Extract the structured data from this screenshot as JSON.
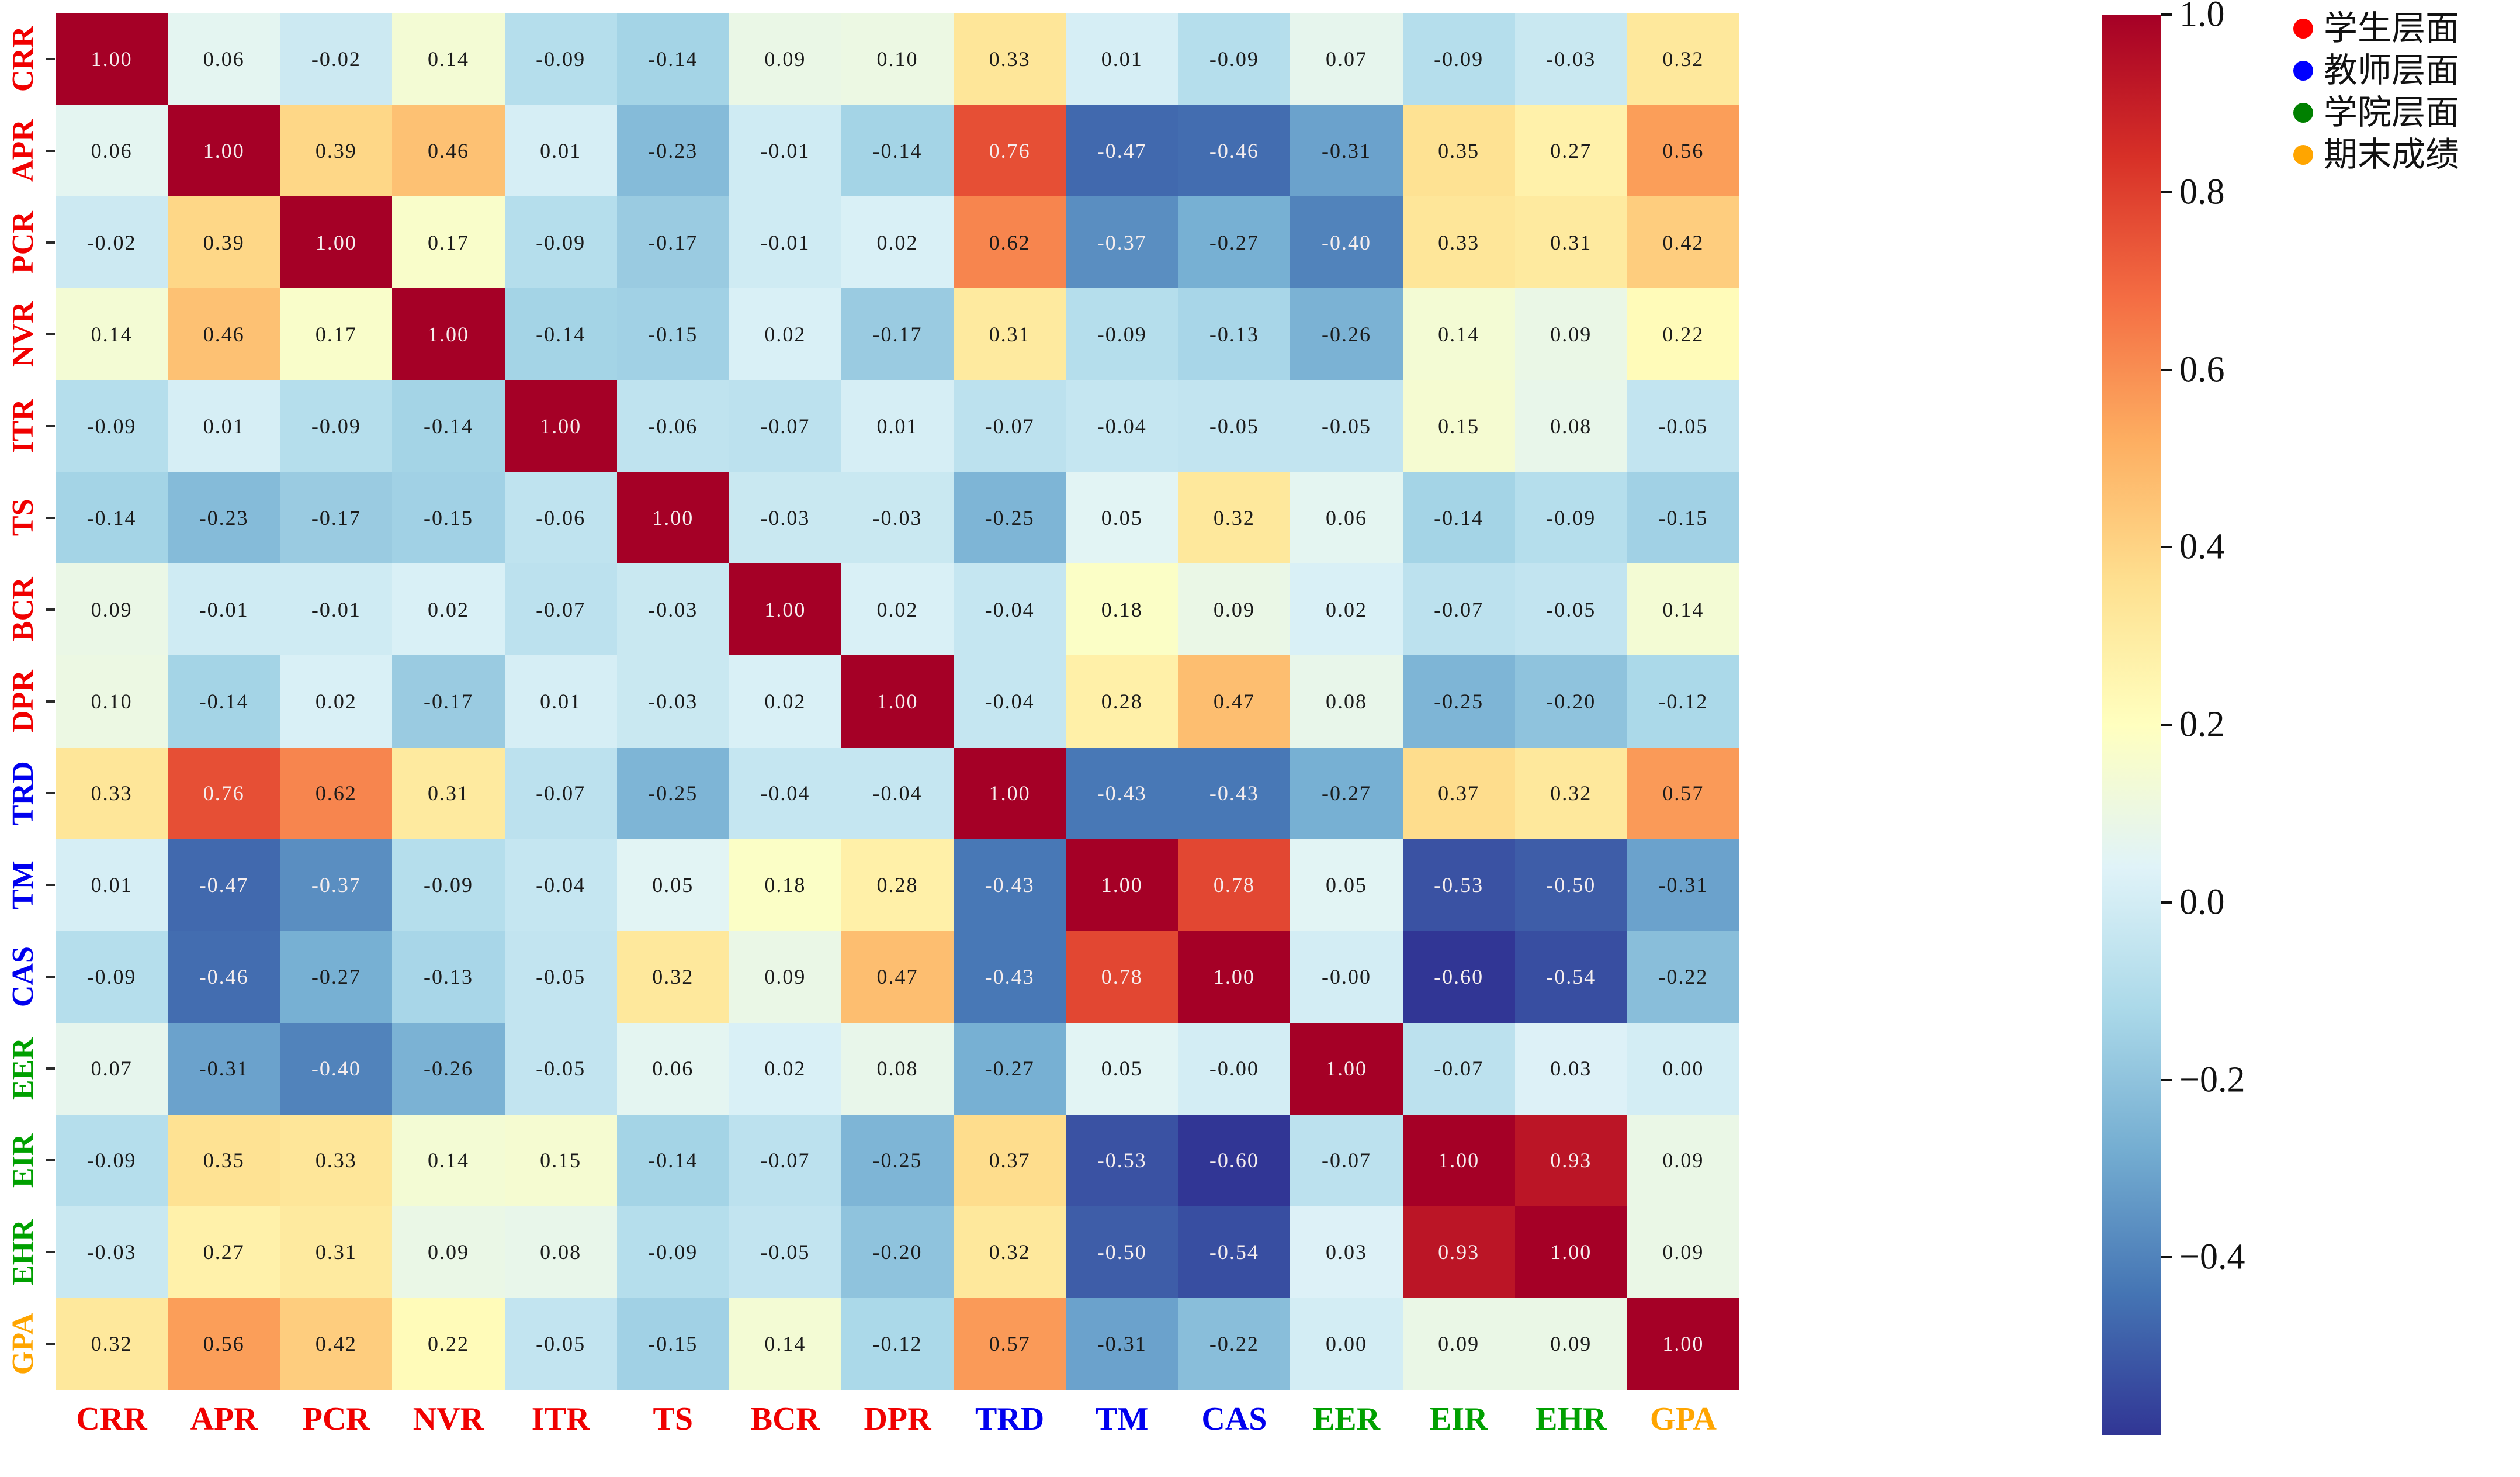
{
  "figure": {
    "background": "#ffffff",
    "description_type": "correlation-heatmap"
  },
  "chart_data": {
    "type": "heatmap",
    "labels": [
      "CRR",
      "APR",
      "PCR",
      "NVR",
      "ITR",
      "TS",
      "BCR",
      "DPR",
      "TRD",
      "TM",
      "CAS",
      "EER",
      "EIR",
      "EHR",
      "GPA"
    ],
    "label_groups": [
      "student",
      "student",
      "student",
      "student",
      "student",
      "student",
      "student",
      "student",
      "teacher",
      "teacher",
      "teacher",
      "college",
      "college",
      "college",
      "gpa"
    ],
    "group_colors": {
      "student": "#f00000",
      "teacher": "#0000ee",
      "college": "#00a000",
      "gpa": "#ffa500"
    },
    "matrix": [
      [
        1.0,
        0.06,
        -0.02,
        0.14,
        -0.09,
        -0.14,
        0.09,
        0.1,
        0.33,
        0.01,
        -0.09,
        0.07,
        -0.09,
        -0.03,
        0.32
      ],
      [
        0.06,
        1.0,
        0.39,
        0.46,
        0.01,
        -0.23,
        -0.01,
        -0.14,
        0.76,
        -0.47,
        -0.46,
        -0.31,
        0.35,
        0.27,
        0.56
      ],
      [
        -0.02,
        0.39,
        1.0,
        0.17,
        -0.09,
        -0.17,
        -0.01,
        0.02,
        0.62,
        -0.37,
        -0.27,
        -0.4,
        0.33,
        0.31,
        0.42
      ],
      [
        0.14,
        0.46,
        0.17,
        1.0,
        -0.14,
        -0.15,
        0.02,
        -0.17,
        0.31,
        -0.09,
        -0.13,
        -0.26,
        0.14,
        0.09,
        0.22
      ],
      [
        -0.09,
        0.01,
        -0.09,
        -0.14,
        1.0,
        -0.06,
        -0.07,
        0.01,
        -0.07,
        -0.04,
        -0.05,
        -0.05,
        0.15,
        0.08,
        -0.05
      ],
      [
        -0.14,
        -0.23,
        -0.17,
        -0.15,
        -0.06,
        1.0,
        -0.03,
        -0.03,
        -0.25,
        0.05,
        0.32,
        0.06,
        -0.14,
        -0.09,
        -0.15
      ],
      [
        0.09,
        -0.01,
        -0.01,
        0.02,
        -0.07,
        -0.03,
        1.0,
        0.02,
        -0.04,
        0.18,
        0.09,
        0.02,
        -0.07,
        -0.05,
        0.14
      ],
      [
        0.1,
        -0.14,
        0.02,
        -0.17,
        0.01,
        -0.03,
        0.02,
        1.0,
        -0.04,
        0.28,
        0.47,
        0.08,
        -0.25,
        -0.2,
        -0.12
      ],
      [
        0.33,
        0.76,
        0.62,
        0.31,
        -0.07,
        -0.25,
        -0.04,
        -0.04,
        1.0,
        -0.43,
        -0.43,
        -0.27,
        0.37,
        0.32,
        0.57
      ],
      [
        0.01,
        -0.47,
        -0.37,
        -0.09,
        -0.04,
        0.05,
        0.18,
        0.28,
        -0.43,
        1.0,
        0.78,
        0.05,
        -0.53,
        -0.5,
        -0.31
      ],
      [
        -0.09,
        -0.46,
        -0.27,
        -0.13,
        -0.05,
        0.32,
        0.09,
        0.47,
        -0.43,
        0.78,
        1.0,
        -0.0,
        -0.6,
        -0.54,
        -0.22
      ],
      [
        0.07,
        -0.31,
        -0.4,
        -0.26,
        -0.05,
        0.06,
        0.02,
        0.08,
        -0.27,
        0.05,
        -0.0,
        1.0,
        -0.07,
        0.03,
        0.0
      ],
      [
        -0.09,
        0.35,
        0.33,
        0.14,
        0.15,
        -0.14,
        -0.07,
        -0.25,
        0.37,
        -0.53,
        -0.6,
        -0.07,
        1.0,
        0.93,
        0.09
      ],
      [
        -0.03,
        0.27,
        0.31,
        0.09,
        0.08,
        -0.09,
        -0.05,
        -0.2,
        0.32,
        -0.5,
        -0.54,
        0.03,
        0.93,
        1.0,
        0.09
      ],
      [
        0.32,
        0.56,
        0.42,
        0.22,
        -0.05,
        -0.15,
        0.14,
        -0.12,
        0.57,
        -0.31,
        -0.22,
        0.0,
        0.09,
        0.09,
        1.0
      ]
    ],
    "colormap": {
      "name": "RdYlBu_r",
      "vmin": -0.6,
      "vmax": 1.0,
      "stops": [
        "#313695",
        "#4575b4",
        "#74add1",
        "#abd9e9",
        "#e0f3f8",
        "#ffffbf",
        "#fee090",
        "#fdae61",
        "#f46d43",
        "#d73027",
        "#a50026"
      ]
    },
    "colorbar": {
      "ticks": [
        {
          "label": "1.0",
          "value": 1.0
        },
        {
          "label": "0.8",
          "value": 0.8
        },
        {
          "label": "0.6",
          "value": 0.6
        },
        {
          "label": "0.4",
          "value": 0.4
        },
        {
          "label": "0.2",
          "value": 0.2
        },
        {
          "label": "0.0",
          "value": 0.0
        },
        {
          "label": "−0.2",
          "value": -0.2
        },
        {
          "label": "−0.4",
          "value": -0.4
        }
      ]
    },
    "legend": [
      {
        "label": "学生层面",
        "color": "#ff0000"
      },
      {
        "label": "教师层面",
        "color": "#0000ff"
      },
      {
        "label": "学院层面",
        "color": "#008000"
      },
      {
        "label": "期末成绩",
        "color": "#ffa500"
      }
    ],
    "grid": false,
    "legend_position": "top-right",
    "annotation_format": "two-decimal"
  }
}
